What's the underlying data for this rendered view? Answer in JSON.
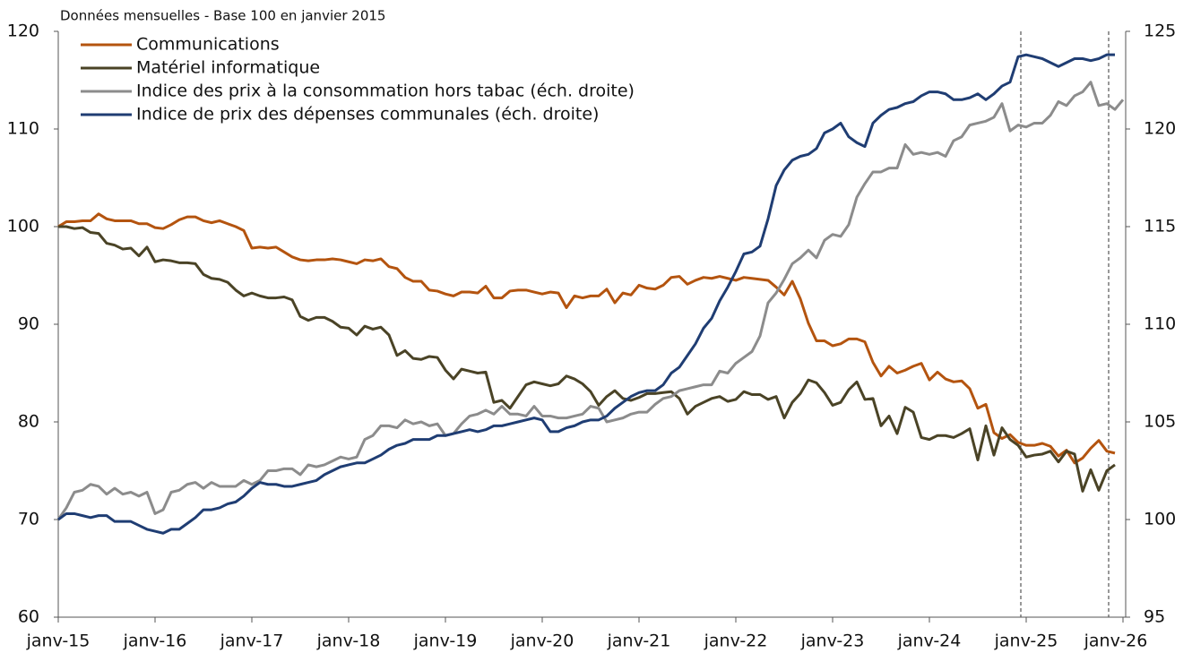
{
  "chart_data": {
    "type": "line",
    "title": "Données mensuelles - Base 100 en janvier 2015",
    "categories": [
      "janv-15",
      null,
      null,
      null,
      null,
      null,
      null,
      null,
      null,
      null,
      null,
      null,
      "janv-16",
      null,
      null,
      null,
      null,
      null,
      null,
      null,
      null,
      null,
      null,
      null,
      "janv-17",
      null,
      null,
      null,
      null,
      null,
      null,
      null,
      null,
      null,
      null,
      null,
      "janv-18",
      null,
      null,
      null,
      null,
      null,
      null,
      null,
      null,
      null,
      null,
      null,
      "janv-19",
      null,
      null,
      null,
      null,
      null,
      null,
      null,
      null,
      null,
      null,
      null,
      "janv-20",
      null,
      null,
      null,
      null,
      null,
      null,
      null,
      null,
      null,
      null,
      null,
      "janv-21",
      null,
      null,
      null,
      null,
      null,
      null,
      null,
      null,
      null,
      null,
      null,
      "janv-22",
      null,
      null,
      null,
      null,
      null,
      null,
      null,
      null,
      null,
      null,
      null,
      "janv-23",
      null,
      null,
      null,
      null,
      null,
      null,
      null,
      null,
      null,
      null,
      null,
      "janv-24",
      null,
      null,
      null,
      null,
      null,
      null,
      null,
      null,
      null,
      null,
      null,
      "janv-25",
      null,
      null,
      null,
      null,
      null,
      null,
      null,
      null,
      null,
      null,
      null,
      "janv-26"
    ],
    "ylim": [
      60,
      120
    ],
    "yticks": [
      60,
      70,
      80,
      90,
      100,
      110,
      120
    ],
    "y2lim": [
      95,
      125
    ],
    "y2ticks": [
      95,
      100,
      105,
      110,
      115,
      120,
      125
    ],
    "legend": "upper left",
    "series": [
      {
        "name": "Communications",
        "color": "#b4540f",
        "values": [
          100,
          100.5,
          100.5,
          100.6,
          100.6,
          101.3,
          100.8,
          100.6,
          100.6,
          100.6,
          100.3,
          100.3,
          99.9,
          99.8,
          100.2,
          100.7,
          101,
          101,
          100.6,
          100.4,
          100.6,
          100.3,
          100,
          99.6,
          97.8,
          97.9,
          97.8,
          97.9,
          97.4,
          96.9,
          96.6,
          96.5,
          96.6,
          96.6,
          96.7,
          96.6,
          96.4,
          96.2,
          96.6,
          96.5,
          96.7,
          95.9,
          95.7,
          94.8,
          94.4,
          94.4,
          93.5,
          93.4,
          93.1,
          92.9,
          93.3,
          93.3,
          93.2,
          93.9,
          92.7,
          92.7,
          93.4,
          93.5,
          93.5,
          93.3,
          93.1,
          93.3,
          93.2,
          91.7,
          92.9,
          92.7,
          92.9,
          92.9,
          93.6,
          92.2,
          93.2,
          93,
          94,
          93.7,
          93.6,
          94,
          94.8,
          94.9,
          94.1,
          94.5,
          94.8,
          94.7,
          94.9,
          94.7,
          94.5,
          94.8,
          94.7,
          94.6,
          94.5,
          93.8,
          93,
          94.4,
          92.6,
          90.1,
          88.3,
          88.3,
          87.8,
          88,
          88.5,
          88.5,
          88.2,
          86.1,
          84.7,
          85.7,
          85,
          85.3,
          85.7,
          86,
          84.3,
          85.1,
          84.4,
          84.1,
          84.2,
          83.4,
          81.4,
          81.8,
          78.9,
          78.3,
          78.7,
          77.9,
          77.6,
          77.6,
          77.8,
          77.5,
          76.5,
          77.1,
          75.8,
          76.3,
          77.3,
          78.1,
          77,
          76.8,
          null
        ]
      },
      {
        "name": "Matériel informatique",
        "color": "#4a4326",
        "values": [
          100,
          100,
          99.8,
          99.9,
          99.4,
          99.3,
          98.3,
          98.1,
          97.7,
          97.8,
          97,
          97.9,
          96.4,
          96.6,
          96.5,
          96.3,
          96.3,
          96.2,
          95.1,
          94.7,
          94.6,
          94.3,
          93.5,
          92.9,
          93.2,
          92.9,
          92.7,
          92.7,
          92.8,
          92.5,
          90.8,
          90.4,
          90.7,
          90.7,
          90.3,
          89.7,
          89.6,
          88.9,
          89.8,
          89.5,
          89.7,
          88.9,
          86.8,
          87.3,
          86.5,
          86.4,
          86.7,
          86.6,
          85.3,
          84.4,
          85.4,
          85.2,
          85,
          85.1,
          82,
          82.2,
          81.4,
          82.6,
          83.8,
          84.1,
          83.9,
          83.7,
          83.9,
          84.7,
          84.4,
          83.9,
          83.1,
          81.7,
          82.6,
          83.2,
          82.4,
          82.2,
          82.5,
          82.9,
          82.9,
          83,
          83.1,
          82.4,
          80.8,
          81.6,
          82,
          82.4,
          82.6,
          82.1,
          82.3,
          83.1,
          82.8,
          82.8,
          82.3,
          82.6,
          80.4,
          82,
          82.9,
          84.3,
          84,
          83,
          81.7,
          82,
          83.3,
          84.1,
          82.3,
          82.4,
          79.6,
          80.6,
          78.8,
          81.5,
          81,
          78.4,
          78.2,
          78.6,
          78.6,
          78.4,
          78.8,
          79.3,
          76.1,
          79.6,
          76.6,
          79.4,
          78.2,
          77.6,
          76.4,
          76.6,
          76.7,
          77,
          75.9,
          77,
          76.7,
          72.9,
          75.1,
          73,
          75,
          75.6,
          null
        ]
      },
      {
        "name": "Indice des prix à la consommation hors tabac (éch. droite)",
        "color": "#8c8c8c",
        "axis": "y2",
        "values": [
          100,
          100.6,
          101.4,
          101.5,
          101.8,
          101.7,
          101.3,
          101.6,
          101.3,
          101.4,
          101.2,
          101.4,
          100.3,
          100.5,
          101.4,
          101.5,
          101.8,
          101.9,
          101.6,
          101.9,
          101.7,
          101.7,
          101.7,
          102,
          101.8,
          102,
          102.5,
          102.5,
          102.6,
          102.6,
          102.3,
          102.8,
          102.7,
          102.8,
          103,
          103.2,
          103.1,
          103.2,
          104.1,
          104.3,
          104.8,
          104.8,
          104.7,
          105.1,
          104.9,
          105,
          104.8,
          104.9,
          104.3,
          104.4,
          104.9,
          105.3,
          105.4,
          105.6,
          105.4,
          105.8,
          105.4,
          105.4,
          105.3,
          105.8,
          105.3,
          105.3,
          105.2,
          105.2,
          105.3,
          105.4,
          105.8,
          105.7,
          105,
          105.1,
          105.2,
          105.4,
          105.5,
          105.5,
          105.9,
          106.2,
          106.3,
          106.6,
          106.7,
          106.8,
          106.9,
          106.9,
          107.6,
          107.5,
          108,
          108.3,
          108.6,
          109.4,
          111.1,
          111.6,
          112.3,
          113.1,
          113.4,
          113.8,
          113.4,
          114.3,
          114.6,
          114.5,
          115.1,
          116.5,
          117.2,
          117.8,
          117.8,
          118,
          118,
          119.2,
          118.7,
          118.8,
          118.7,
          118.8,
          118.6,
          119.4,
          119.6,
          120.2,
          120.3,
          120.4,
          120.6,
          121.3,
          119.9,
          120.2,
          120.1,
          120.3,
          120.3,
          120.7,
          121.4,
          121.2,
          121.7,
          121.9,
          122.4,
          121.2,
          121.3,
          121,
          121.5
        ]
      },
      {
        "name": "Indice de prix des dépenses communales (éch. droite)",
        "color": "#1f3d73",
        "axis": "y2",
        "values": [
          100,
          100.3,
          100.3,
          100.2,
          100.1,
          100.2,
          100.2,
          99.9,
          99.9,
          99.9,
          99.7,
          99.5,
          99.4,
          99.3,
          99.5,
          99.5,
          99.8,
          100.1,
          100.5,
          100.5,
          100.6,
          100.8,
          100.9,
          101.2,
          101.6,
          101.9,
          101.8,
          101.8,
          101.7,
          101.7,
          101.8,
          101.9,
          102,
          102.3,
          102.5,
          102.7,
          102.8,
          102.9,
          102.9,
          103.1,
          103.3,
          103.6,
          103.8,
          103.9,
          104.1,
          104.1,
          104.1,
          104.3,
          104.3,
          104.4,
          104.5,
          104.6,
          104.5,
          104.6,
          104.8,
          104.8,
          104.9,
          105,
          105.1,
          105.2,
          105.1,
          104.5,
          104.5,
          104.7,
          104.8,
          105,
          105.1,
          105.1,
          105.3,
          105.7,
          106,
          106.3,
          106.5,
          106.6,
          106.6,
          106.9,
          107.5,
          107.8,
          108.4,
          109,
          109.8,
          110.3,
          111.2,
          111.9,
          112.7,
          113.6,
          113.7,
          114,
          115.4,
          117.1,
          117.9,
          118.4,
          118.6,
          118.7,
          119,
          119.8,
          120,
          120.3,
          119.6,
          119.3,
          119.1,
          120.3,
          120.7,
          121,
          121.1,
          121.3,
          121.4,
          121.7,
          121.9,
          121.9,
          121.8,
          121.5,
          121.5,
          121.6,
          121.8,
          121.5,
          121.8,
          122.2,
          122.4,
          123.7,
          123.8,
          123.7,
          123.6,
          123.4,
          123.2,
          123.4,
          123.6,
          123.6,
          123.5,
          123.6,
          123.8,
          123.8,
          null
        ]
      }
    ]
  }
}
